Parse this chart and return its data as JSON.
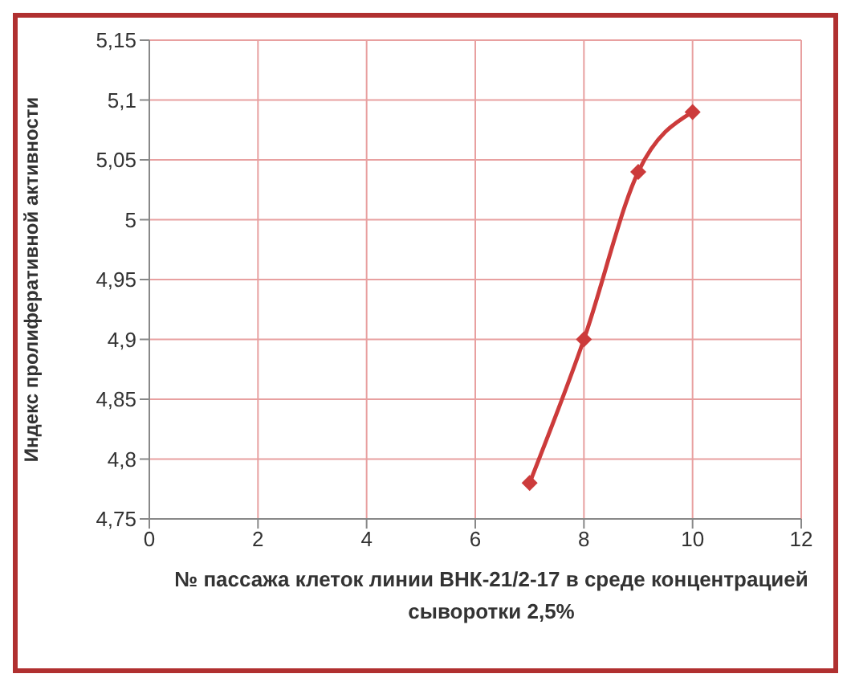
{
  "chart_data": {
    "type": "line",
    "xlabel": "№ пассажа клеток линии ВНК-21/2-17 в среде концентрацией сыворотки 2,5%",
    "ylabel": "Индекс пролиферативной активности",
    "x": [
      7,
      8,
      9,
      10
    ],
    "series": [
      {
        "color": "#cc3b3b",
        "values": [
          4.78,
          4.9,
          5.04,
          5.09
        ]
      }
    ],
    "xlim": [
      0,
      12
    ],
    "xticks": [
      0,
      2,
      4,
      6,
      8,
      10,
      12
    ],
    "ylim": [
      4.75,
      5.15
    ],
    "yticks": [
      {
        "value": 4.75,
        "label": "4,75"
      },
      {
        "value": 4.8,
        "label": "4,8"
      },
      {
        "value": 4.85,
        "label": "4,85"
      },
      {
        "value": 4.9,
        "label": "4,9"
      },
      {
        "value": 4.95,
        "label": "4,95"
      },
      5,
      {
        "value": 5.05,
        "label": "5,05"
      },
      {
        "value": 5.1,
        "label": "5,1"
      },
      {
        "value": 5.15,
        "label": "5,15"
      }
    ],
    "grid": true,
    "marker": "diamond",
    "line_style": "solid"
  }
}
